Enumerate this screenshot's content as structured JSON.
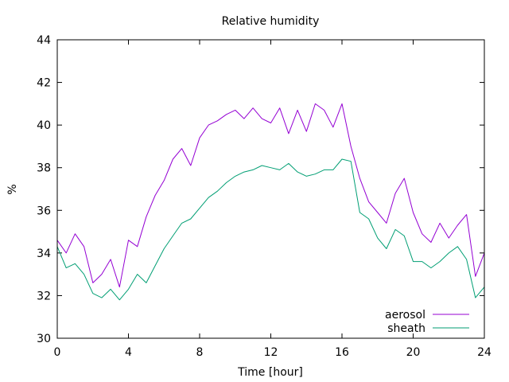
{
  "chart_data": {
    "type": "line",
    "title": "Relative humidity",
    "xlabel": "Time [hour]",
    "ylabel": "%",
    "xlim": [
      0,
      24
    ],
    "ylim": [
      30,
      44
    ],
    "xticks": [
      0,
      4,
      8,
      12,
      16,
      20,
      24
    ],
    "yticks": [
      30,
      32,
      34,
      36,
      38,
      40,
      42,
      44
    ],
    "grid": false,
    "legend_position": "bottom-right",
    "series": [
      {
        "name": "aerosol",
        "color": "#9400d3",
        "x": [
          0,
          0.5,
          1,
          1.5,
          2,
          2.5,
          3,
          3.5,
          4,
          4.5,
          5,
          5.5,
          6,
          6.5,
          7,
          7.5,
          8,
          8.5,
          9,
          9.5,
          10,
          10.5,
          11,
          11.5,
          12,
          12.5,
          13,
          13.5,
          14,
          14.5,
          15,
          15.5,
          16,
          16.5,
          17,
          17.5,
          18,
          18.5,
          19,
          19.5,
          20,
          20.5,
          21,
          21.5,
          22,
          22.5,
          23,
          23.5,
          24
        ],
        "values": [
          34.6,
          34.0,
          34.9,
          34.3,
          32.6,
          33.0,
          33.7,
          32.4,
          34.6,
          34.3,
          35.7,
          36.7,
          37.4,
          38.4,
          38.9,
          38.1,
          39.4,
          40.0,
          40.2,
          40.5,
          40.7,
          40.3,
          40.8,
          40.3,
          40.1,
          40.8,
          39.6,
          40.7,
          39.7,
          41.0,
          40.7,
          39.9,
          41.0,
          39.0,
          37.5,
          36.4,
          35.9,
          35.4,
          36.8,
          37.5,
          35.9,
          34.9,
          34.5,
          35.4,
          34.7,
          35.3,
          35.8,
          32.9,
          34.0
        ]
      },
      {
        "name": "sheath",
        "color": "#009e73",
        "x": [
          0,
          0.5,
          1,
          1.5,
          2,
          2.5,
          3,
          3.5,
          4,
          4.5,
          5,
          5.5,
          6,
          6.5,
          7,
          7.5,
          8,
          8.5,
          9,
          9.5,
          10,
          10.5,
          11,
          11.5,
          12,
          12.5,
          13,
          13.5,
          14,
          14.5,
          15,
          15.5,
          16,
          16.5,
          17,
          17.5,
          18,
          18.5,
          19,
          19.5,
          20,
          20.5,
          21,
          21.5,
          22,
          22.5,
          23,
          23.5,
          24
        ],
        "values": [
          34.3,
          33.3,
          33.5,
          33.0,
          32.1,
          31.9,
          32.3,
          31.8,
          32.3,
          33.0,
          32.6,
          33.4,
          34.2,
          34.8,
          35.4,
          35.6,
          36.1,
          36.6,
          36.9,
          37.3,
          37.6,
          37.8,
          37.9,
          38.1,
          38.0,
          37.9,
          38.2,
          37.8,
          37.6,
          37.7,
          37.9,
          37.9,
          38.4,
          38.3,
          35.9,
          35.6,
          34.7,
          34.2,
          35.1,
          34.8,
          33.6,
          33.6,
          33.3,
          33.6,
          34.0,
          34.3,
          33.7,
          31.9,
          32.4
        ]
      }
    ]
  }
}
